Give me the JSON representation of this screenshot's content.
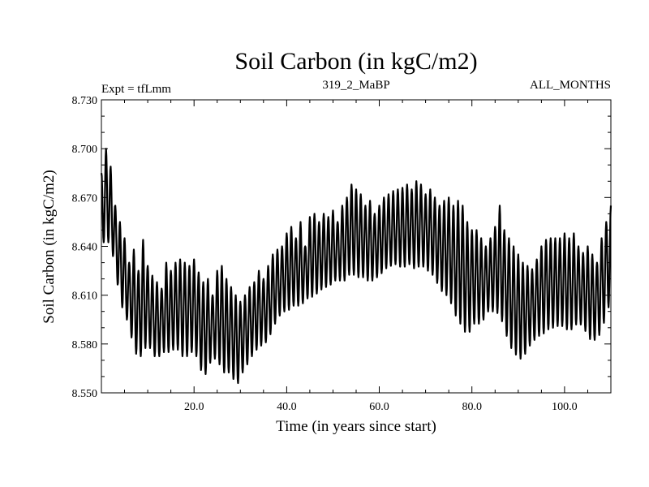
{
  "chart_data": {
    "type": "line",
    "title": "Soil Carbon (in kgC/m2)",
    "subtitle_left": "Expt = tfLmm",
    "subtitle_center": "319_2_MaBP",
    "subtitle_right": "ALL_MONTHS",
    "xlabel": "Time (in years since start)",
    "ylabel": "Soil Carbon (in kgC/m2)",
    "xlim": [
      0,
      110
    ],
    "ylim": [
      8.55,
      8.73
    ],
    "x_ticks": [
      20,
      40,
      60,
      80,
      100
    ],
    "x_tick_labels": [
      "20.0",
      "40.0",
      "60.0",
      "80.0",
      "100.0"
    ],
    "y_ticks": [
      8.55,
      8.58,
      8.61,
      8.64,
      8.67,
      8.7,
      8.73
    ],
    "y_tick_labels": [
      "8.550",
      "8.580",
      "8.610",
      "8.640",
      "8.670",
      "8.700",
      "8.730"
    ],
    "grid": false,
    "line_color": "#000000",
    "series": [
      {
        "name": "Soil Carbon",
        "cycle_period_years": 1,
        "annual_max": [
          8.685,
          8.7,
          8.689,
          8.665,
          8.655,
          8.645,
          8.63,
          8.638,
          8.625,
          8.644,
          8.628,
          8.622,
          8.618,
          8.614,
          8.63,
          8.625,
          8.63,
          8.632,
          8.63,
          8.628,
          8.632,
          8.624,
          8.618,
          8.62,
          8.61,
          8.625,
          8.628,
          8.62,
          8.615,
          8.61,
          8.606,
          8.61,
          8.615,
          8.618,
          8.625,
          8.62,
          8.628,
          8.635,
          8.638,
          8.64,
          8.648,
          8.652,
          8.645,
          8.655,
          8.64,
          8.658,
          8.66,
          8.655,
          8.66,
          8.658,
          8.662,
          8.655,
          8.665,
          8.67,
          8.678,
          8.675,
          8.672,
          8.665,
          8.668,
          8.66,
          8.665,
          8.67,
          8.672,
          8.674,
          8.675,
          8.676,
          8.678,
          8.675,
          8.68,
          8.678,
          8.672,
          8.675,
          8.67,
          8.665,
          8.668,
          8.67,
          8.665,
          8.668,
          8.665,
          8.655,
          8.65,
          8.65,
          8.645,
          8.64,
          8.645,
          8.652,
          8.665,
          8.65,
          8.645,
          8.64,
          8.635,
          8.63,
          8.628,
          8.626,
          8.632,
          8.64,
          8.644,
          8.645,
          8.645,
          8.645,
          8.648,
          8.645,
          8.648,
          8.64,
          8.636,
          8.64,
          8.635,
          8.63,
          8.645,
          8.655,
          8.665
        ],
        "annual_min": [
          8.64,
          8.645,
          8.64,
          8.628,
          8.605,
          8.6,
          8.59,
          8.578,
          8.57,
          8.575,
          8.58,
          8.575,
          8.57,
          8.575,
          8.575,
          8.575,
          8.578,
          8.575,
          8.57,
          8.575,
          8.575,
          8.57,
          8.558,
          8.565,
          8.572,
          8.57,
          8.565,
          8.56,
          8.565,
          8.552,
          8.56,
          8.565,
          8.57,
          8.575,
          8.578,
          8.58,
          8.582,
          8.59,
          8.595,
          8.6,
          8.6,
          8.602,
          8.605,
          8.602,
          8.608,
          8.608,
          8.61,
          8.612,
          8.615,
          8.615,
          8.618,
          8.62,
          8.618,
          8.62,
          8.625,
          8.62,
          8.622,
          8.62,
          8.618,
          8.62,
          8.622,
          8.625,
          8.628,
          8.628,
          8.63,
          8.625,
          8.63,
          8.628,
          8.625,
          8.63,
          8.625,
          8.625,
          8.62,
          8.615,
          8.61,
          8.61,
          8.6,
          8.595,
          8.59,
          8.585,
          8.59,
          8.595,
          8.59,
          8.6,
          8.6,
          8.6,
          8.598,
          8.59,
          8.58,
          8.575,
          8.572,
          8.57,
          8.578,
          8.58,
          8.585,
          8.585,
          8.588,
          8.59,
          8.59,
          8.592,
          8.59,
          8.588,
          8.59,
          8.594,
          8.59,
          8.586,
          8.58,
          8.585,
          8.586,
          8.6,
          8.605
        ]
      }
    ]
  }
}
